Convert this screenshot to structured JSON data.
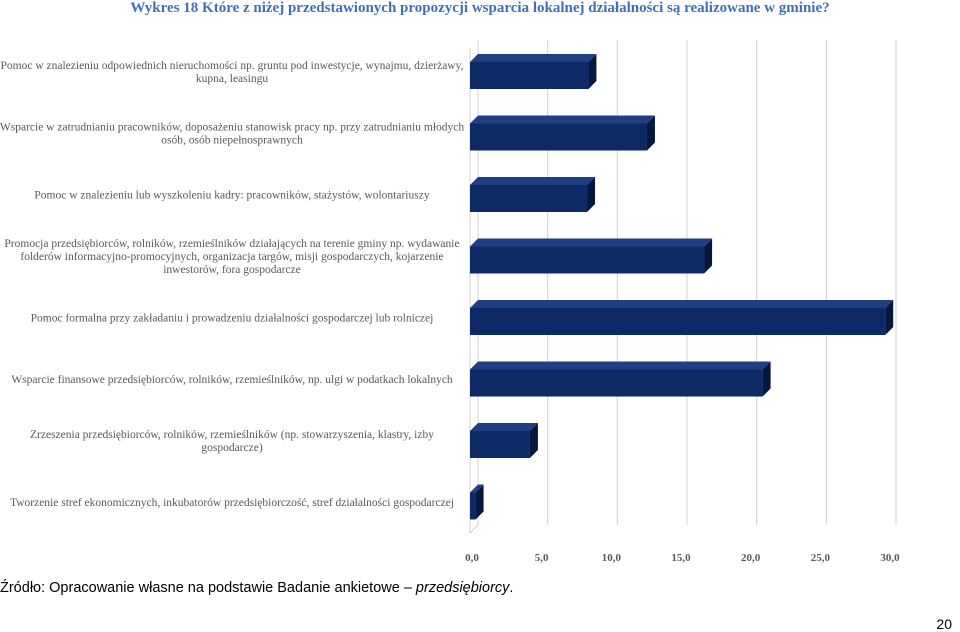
{
  "title": "Wykres 18 Które z niżej przedstawionych propozycji wsparcia lokalnej działalności są realizowane w gminie?",
  "source": {
    "prefix": "Źródło: Opracowanie własne na podstawie Badanie ankietowe – ",
    "italic": "przedsiębiorcy",
    "suffix": "."
  },
  "page_number": "20",
  "colors": {
    "bar_front": "#0e2a66",
    "bar_top": "#203f82",
    "bar_side": "#06173f",
    "grid": "#d0d0d0"
  },
  "chart_data": {
    "type": "bar",
    "orientation": "horizontal",
    "style": "3d",
    "title": "",
    "xlabel": "",
    "ylabel": "",
    "xlim": [
      0,
      30
    ],
    "grid": true,
    "legend": "none",
    "ticks": [
      "0,0",
      "5,0",
      "10,0",
      "15,0",
      "20,0",
      "25,0",
      "30,0"
    ],
    "categories": [
      [
        "Pomoc w znalezieniu odpowiednich nieruchomości np. gruntu pod inwestycje, wynajmu, dzierżawy,",
        "kupna, leasingu"
      ],
      [
        "Wsparcie w zatrudnianiu pracowników, doposażeniu stanowisk pracy np. przy zatrudnianiu młodych",
        "osób, osób niepełnosprawnych"
      ],
      [
        "Pomoc w znalezieniu lub wyszkoleniu kadry: pracowników, stażystów, wolontariuszy"
      ],
      [
        "Promocja przedsiębiorców, rolników, rzemieślników działających na terenie gminy np. wydawanie",
        "folderów informacyjno-promocyjnych, organizacja targów, misji gospodarczych, kojarzenie",
        "inwestorów, fora gospodarcze"
      ],
      [
        "Pomoc formalna przy zakładaniu i prowadzeniu działalności gospodarczej lub rolniczej"
      ],
      [
        "Wsparcie finansowe przedsiębiorców, rolników, rzemieślników, np. ulgi w podatkach lokalnych"
      ],
      [
        "Zrzeszenia przedsiębiorców, rolników, rzemieślników (np. stowarzyszenia, klastry, izby",
        "gospodarcze)"
      ],
      [
        "Tworzenie stref ekonomicznych, inkubatorów przedsiębiorczość, stref działalności gospodarczej"
      ]
    ],
    "values": [
      8.5,
      12.7,
      8.4,
      16.8,
      29.8,
      21.0,
      4.3,
      0.4
    ]
  }
}
